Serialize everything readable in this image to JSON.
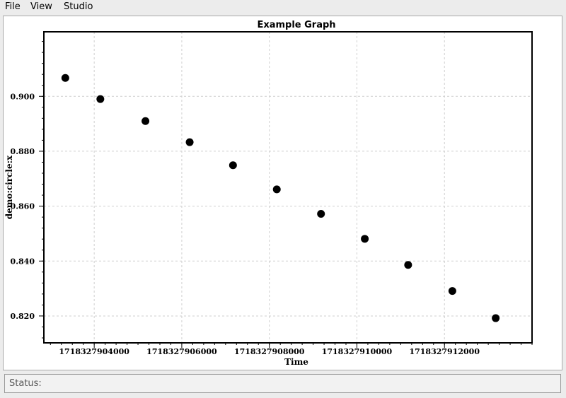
{
  "menu": {
    "file": "File",
    "view": "View",
    "studio": "Studio"
  },
  "status": {
    "label": "Status:"
  },
  "chart_data": {
    "type": "scatter",
    "title": "Example Graph",
    "xlabel": "Time",
    "ylabel": "demo:circle:x",
    "xlim": [
      1718327902850,
      1718327914000
    ],
    "ylim": [
      0.8102,
      0.9235
    ],
    "x_ticks": [
      1718327904000,
      1718327906000,
      1718327908000,
      1718327910000,
      1718327912000
    ],
    "x_tick_labels": [
      "1718327904000",
      "1718327906000",
      "1718327908000",
      "1718327910000",
      "1718327912000"
    ],
    "x_tick_partial_label": "0",
    "y_ticks": [
      0.82,
      0.84,
      0.86,
      0.88,
      0.9
    ],
    "y_tick_labels": [
      "0.820",
      "0.840",
      "0.860",
      "0.880",
      "0.900"
    ],
    "grid": true,
    "series": [
      {
        "name": "demo:circle:x",
        "color": "#000000",
        "x": [
          1718327903340,
          1718327904140,
          1718327905170,
          1718327906180,
          1718327907170,
          1718327908170,
          1718327909180,
          1718327910180,
          1718327911170,
          1718327912180,
          1718327913170
        ],
        "y": [
          0.9067,
          0.899,
          0.891,
          0.8833,
          0.8749,
          0.8661,
          0.8572,
          0.8481,
          0.8386,
          0.8291,
          0.8192
        ]
      }
    ]
  }
}
